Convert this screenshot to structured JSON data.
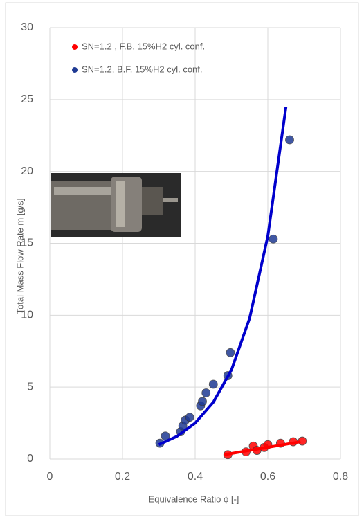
{
  "chart_data": {
    "type": "scatter",
    "xlabel": "Equivalence Ratio ϕ [-]",
    "ylabel": "Total Mass Flow Rate ṁ [g/s]",
    "xlim": [
      0,
      0.8
    ],
    "xticks": [
      0,
      0.2,
      0.4,
      0.6,
      0.8
    ],
    "ylim": [
      0,
      30
    ],
    "yticks": [
      0,
      5,
      10,
      15,
      20,
      25,
      30
    ],
    "grid": true,
    "legend": "top-left",
    "series": [
      {
        "name": "SN=1.2 , F.B. 15%H2 cyl. conf.",
        "color": "#ff0000",
        "x": [
          0.49,
          0.54,
          0.56,
          0.57,
          0.59,
          0.6,
          0.635,
          0.67,
          0.695
        ],
        "values": [
          0.3,
          0.5,
          0.9,
          0.6,
          0.8,
          1.0,
          1.1,
          1.2,
          1.25
        ]
      },
      {
        "name": "SN=1.2, B.F. 15%H2 cyl. conf.",
        "color": "#1f3a93",
        "x": [
          0.303,
          0.318,
          0.36,
          0.366,
          0.373,
          0.385,
          0.415,
          0.42,
          0.43,
          0.45,
          0.49,
          0.497,
          0.615,
          0.66
        ],
        "values": [
          1.1,
          1.6,
          1.9,
          2.3,
          2.7,
          2.9,
          3.7,
          4.0,
          4.6,
          5.2,
          5.8,
          7.4,
          15.3,
          22.2
        ]
      }
    ],
    "trendlines": [
      {
        "color": "#ff0000",
        "x": [
          0.48,
          0.69
        ],
        "values": [
          0.3,
          1.2
        ]
      },
      {
        "color": "#0000cc",
        "x": [
          0.3,
          0.35,
          0.4,
          0.45,
          0.5,
          0.55,
          0.6,
          0.65
        ],
        "values": [
          1.0,
          1.58,
          2.5,
          3.95,
          6.2,
          9.8,
          15.5,
          24.5
        ]
      }
    ]
  }
}
